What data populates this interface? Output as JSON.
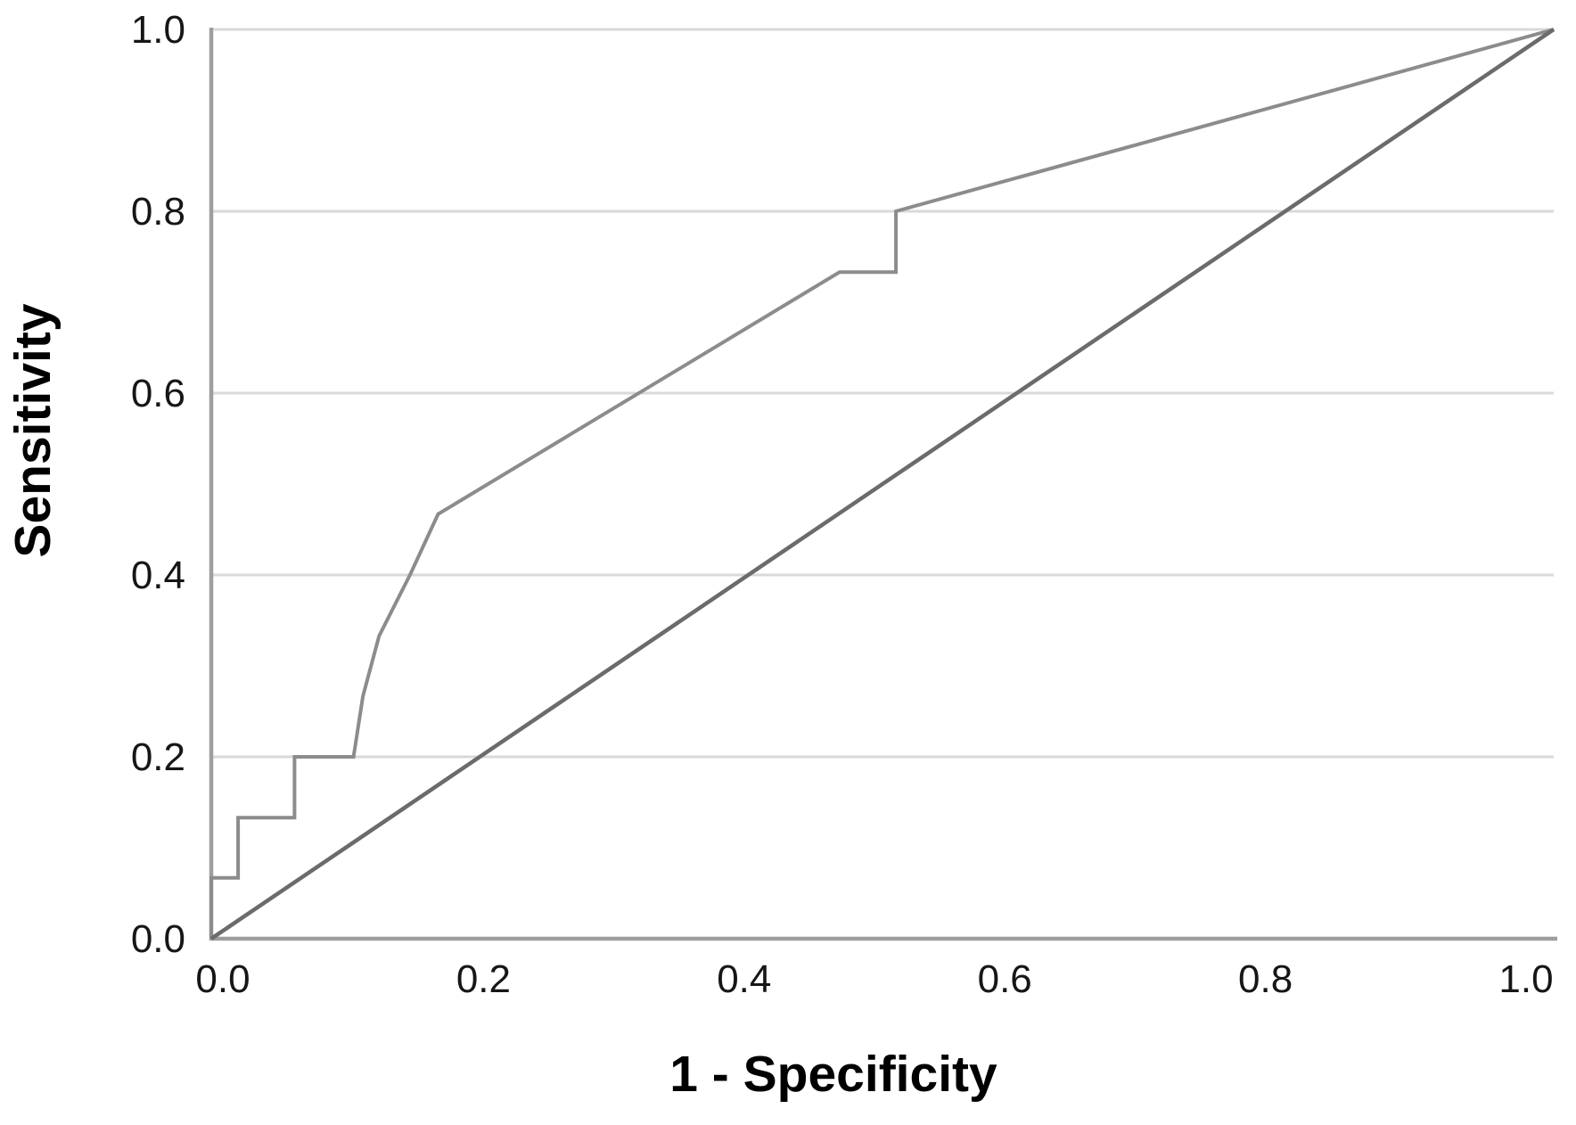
{
  "figure": {
    "xlabel": "1 - Specificity",
    "ylabel": "Sensitivity"
  },
  "chart_data": {
    "type": "line",
    "title": "",
    "subtitle": "",
    "xlabel": "1 - Specificity",
    "ylabel": "Sensitivity",
    "xlim": [
      0.0,
      1.0
    ],
    "ylim": [
      0.0,
      1.0
    ],
    "x_tick_values": [
      0.0,
      0.2,
      0.4,
      0.6,
      0.8,
      1.0
    ],
    "x_tick_labels": [
      "0.0",
      "0.2",
      "0.4",
      "0.6",
      "0.8",
      "1.0"
    ],
    "y_tick_values": [
      0.0,
      0.2,
      0.4,
      0.6,
      0.8,
      1.0
    ],
    "y_tick_labels": [
      "0.0",
      "0.2",
      "0.4",
      "0.6",
      "0.8",
      "1.0"
    ],
    "grid": "horizontal-only",
    "legend": "none",
    "colors": {
      "background": "#ffffff",
      "grid": "#d9d9d9",
      "axis": "#9e9e9e",
      "roc_curve": "#8c8c8c",
      "reference_line": "#6b6b6b",
      "tick_text": "#161616",
      "title_text": "#000000"
    },
    "series": [
      {
        "name": "ROC curve",
        "style": "step-polyline",
        "stroke_width": 4,
        "points": [
          [
            0.0,
            0.0
          ],
          [
            0.0,
            0.067
          ],
          [
            0.02,
            0.067
          ],
          [
            0.02,
            0.133
          ],
          [
            0.062,
            0.133
          ],
          [
            0.062,
            0.2
          ],
          [
            0.106,
            0.2
          ],
          [
            0.113,
            0.267
          ],
          [
            0.125,
            0.333
          ],
          [
            0.148,
            0.4
          ],
          [
            0.169,
            0.467
          ],
          [
            0.468,
            0.733
          ],
          [
            0.51,
            0.733
          ],
          [
            0.51,
            0.8
          ],
          [
            1.0,
            1.0
          ]
        ]
      },
      {
        "name": "Reference diagonal",
        "style": "straight-line",
        "stroke_width": 4.5,
        "points": [
          [
            0.0,
            0.0
          ],
          [
            1.0,
            1.0
          ]
        ]
      }
    ]
  }
}
